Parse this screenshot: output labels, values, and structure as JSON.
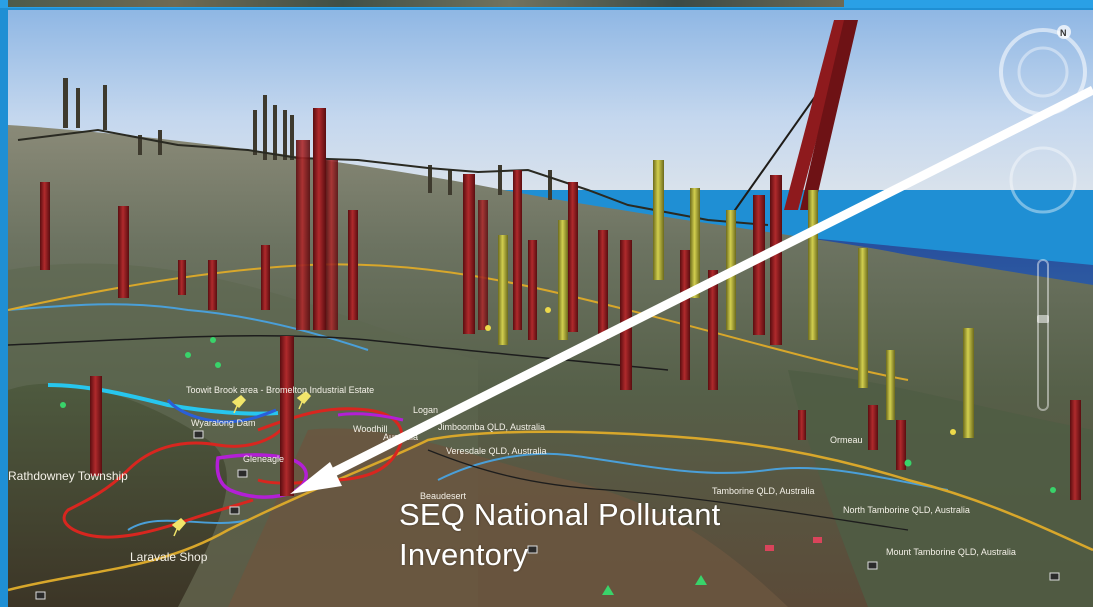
{
  "caption": {
    "line1": "SEQ National Pollutant",
    "line2": "Inventory"
  },
  "places": {
    "boonah": "Toowit Brook area - Bromelton Industrial Estate",
    "wyaralong": "Wyaralong Dam",
    "woodhill": "Woodhill",
    "australia": "Australia",
    "jimboomba": "Jimboomba QLD, Australia",
    "veresdale": "Veresdale QLD, Australia",
    "gleneagle": "Gleneagle",
    "beaudesert": "Beaudesert",
    "rathdowney": "Rathdowney Township",
    "laravale": "Laravale Shop",
    "tamborine": "Tamborine QLD, Australia",
    "north_tamborine": "North Tamborine QLD, Australia",
    "mount_tamborine": "Mount Tamborine QLD, Australia",
    "logan": "Logan",
    "ormeau": "Ormeau"
  },
  "compass": {
    "north_label": "N"
  },
  "colors": {
    "frame": "#1f8fd4",
    "pollutant_red": "#8e1a1d",
    "pollutant_yellow": "#b7b43a",
    "route_red": "#d8261f",
    "route_purple": "#b31fd6",
    "route_cyan": "#27c6ee",
    "road": "#d8a72b",
    "arrow": "#ffffff"
  }
}
